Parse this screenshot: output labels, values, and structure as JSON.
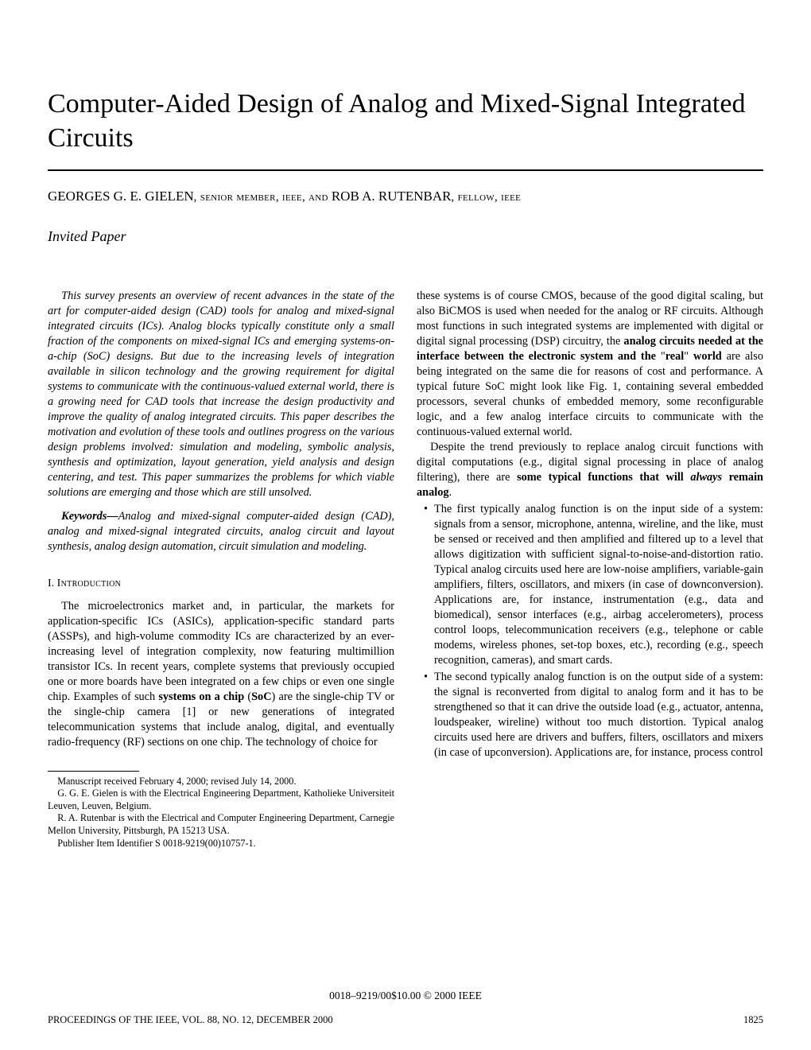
{
  "title": "Computer-Aided Design of Analog and Mixed-Signal Integrated Circuits",
  "authors_line": {
    "a1_name": "GEORGES G. E. GIELEN",
    "a1_grade_sc": ", senior member, ieee, ",
    "and_sc": "and ",
    "a2_name": "ROB A. RUTENBAR",
    "a2_grade_sc": ", fellow, ieee"
  },
  "invited": "Invited Paper",
  "abstract": "This survey presents an overview of recent advances in the state of the art for computer-aided design (CAD) tools for analog and mixed-signal integrated circuits (ICs). Analog blocks typically constitute only a small fraction of the components on mixed-signal ICs and emerging systems-on-a-chip (SoC) designs. But due to the increasing levels of integration available in silicon technology and the growing requirement for digital systems to communicate with the continuous-valued external world, there is a growing need for CAD tools that increase the design productivity and improve the quality of analog integrated circuits. This paper describes the motivation and evolution of these tools and outlines progress on the various design problems involved: simulation and modeling, symbolic analysis, synthesis and optimization, layout generation, yield analysis and design centering, and test. This paper summarizes the problems for which viable solutions are emerging and those which are still unsolved.",
  "keywords_label": "Keywords—",
  "keywords": "Analog and mixed-signal computer-aided design (CAD), analog and mixed-signal integrated circuits, analog circuit and layout synthesis, analog design automation, circuit simulation and modeling.",
  "section1": {
    "num": "I.",
    "title": "Introduction"
  },
  "intro_p1": "The microelectronics market and, in particular, the markets for application-specific ICs (ASICs), application-specific standard parts (ASSPs), and high-volume commodity ICs are characterized by an ever-increasing level of integration complexity, now featuring multimillion transistor ICs. In recent years, complete systems that previously occupied one or more boards have been integrated on a few chips or even one single chip. Examples of such systems on a chip (SoC) are the single-chip TV or the single-chip camera [1] or new generations of integrated telecommunication systems that include analog, digital, and eventually radio-frequency (RF) sections on one chip. The technology of choice for",
  "footnotes": {
    "f1": "Manuscript received February 4, 2000; revised July 14, 2000.",
    "f2": "G. G. E. Gielen is with the Electrical Engineering Department, Katholieke Universiteit Leuven, Leuven, Belgium.",
    "f3": "R. A. Rutenbar is with the Electrical and Computer Engineering Department, Carnegie Mellon University, Pittsburgh, PA 15213 USA.",
    "f4": "Publisher Item Identifier S 0018-9219(00)10757-1."
  },
  "col2_p1": "these systems is of course CMOS, because of the good digital scaling, but also BiCMOS is used when needed for the analog or RF circuits. Although most functions in such integrated systems are implemented with digital or digital signal processing (DSP) circuitry, the analog circuits needed at the interface between the electronic system and the \"real\" world are also being integrated on the same die for reasons of cost and performance. A typical future SoC might look like Fig. 1, containing several embedded processors, several chunks of embedded memory, some reconfigurable logic, and a few analog interface circuits to communicate with the continuous-valued external world.",
  "col2_p2": "Despite the trend previously to replace analog circuit functions with digital computations (e.g., digital signal processing in place of analog filtering), there are some typical functions that will always remain analog.",
  "bullets": {
    "b1": "The first typically analog function is on the input side of a system: signals from a sensor, microphone, antenna, wireline, and the like, must be sensed or received and then amplified and filtered up to a level that allows digitization with sufficient signal-to-noise-and-distortion ratio. Typical analog circuits used here are low-noise amplifiers, variable-gain amplifiers, filters, oscillators, and mixers (in case of downconversion). Applications are, for instance, instrumentation (e.g., data and biomedical), sensor interfaces (e.g., airbag accelerometers), process control loops, telecommunication receivers (e.g., telephone or cable modems, wireless phones, set-top boxes, etc.), recording (e.g., speech recognition, cameras), and smart cards.",
    "b2": "The second typically analog function is on the output side of a system: the signal is reconverted from digital to analog form and it has to be strengthened so that it can drive the outside load (e.g., actuator, antenna, loudspeaker, wireline) without too much distortion. Typical analog circuits used here are drivers and buffers, filters, oscillators and mixers (in case of upconversion). Applications are, for instance, process control"
  },
  "copyright": "0018–9219/00$10.00 © 2000 IEEE",
  "running_left": "PROCEEDINGS OF THE IEEE, VOL. 88, NO. 12, DECEMBER 2000",
  "running_right": "1825",
  "colors": {
    "text": "#000000",
    "bg": "#ffffff"
  }
}
